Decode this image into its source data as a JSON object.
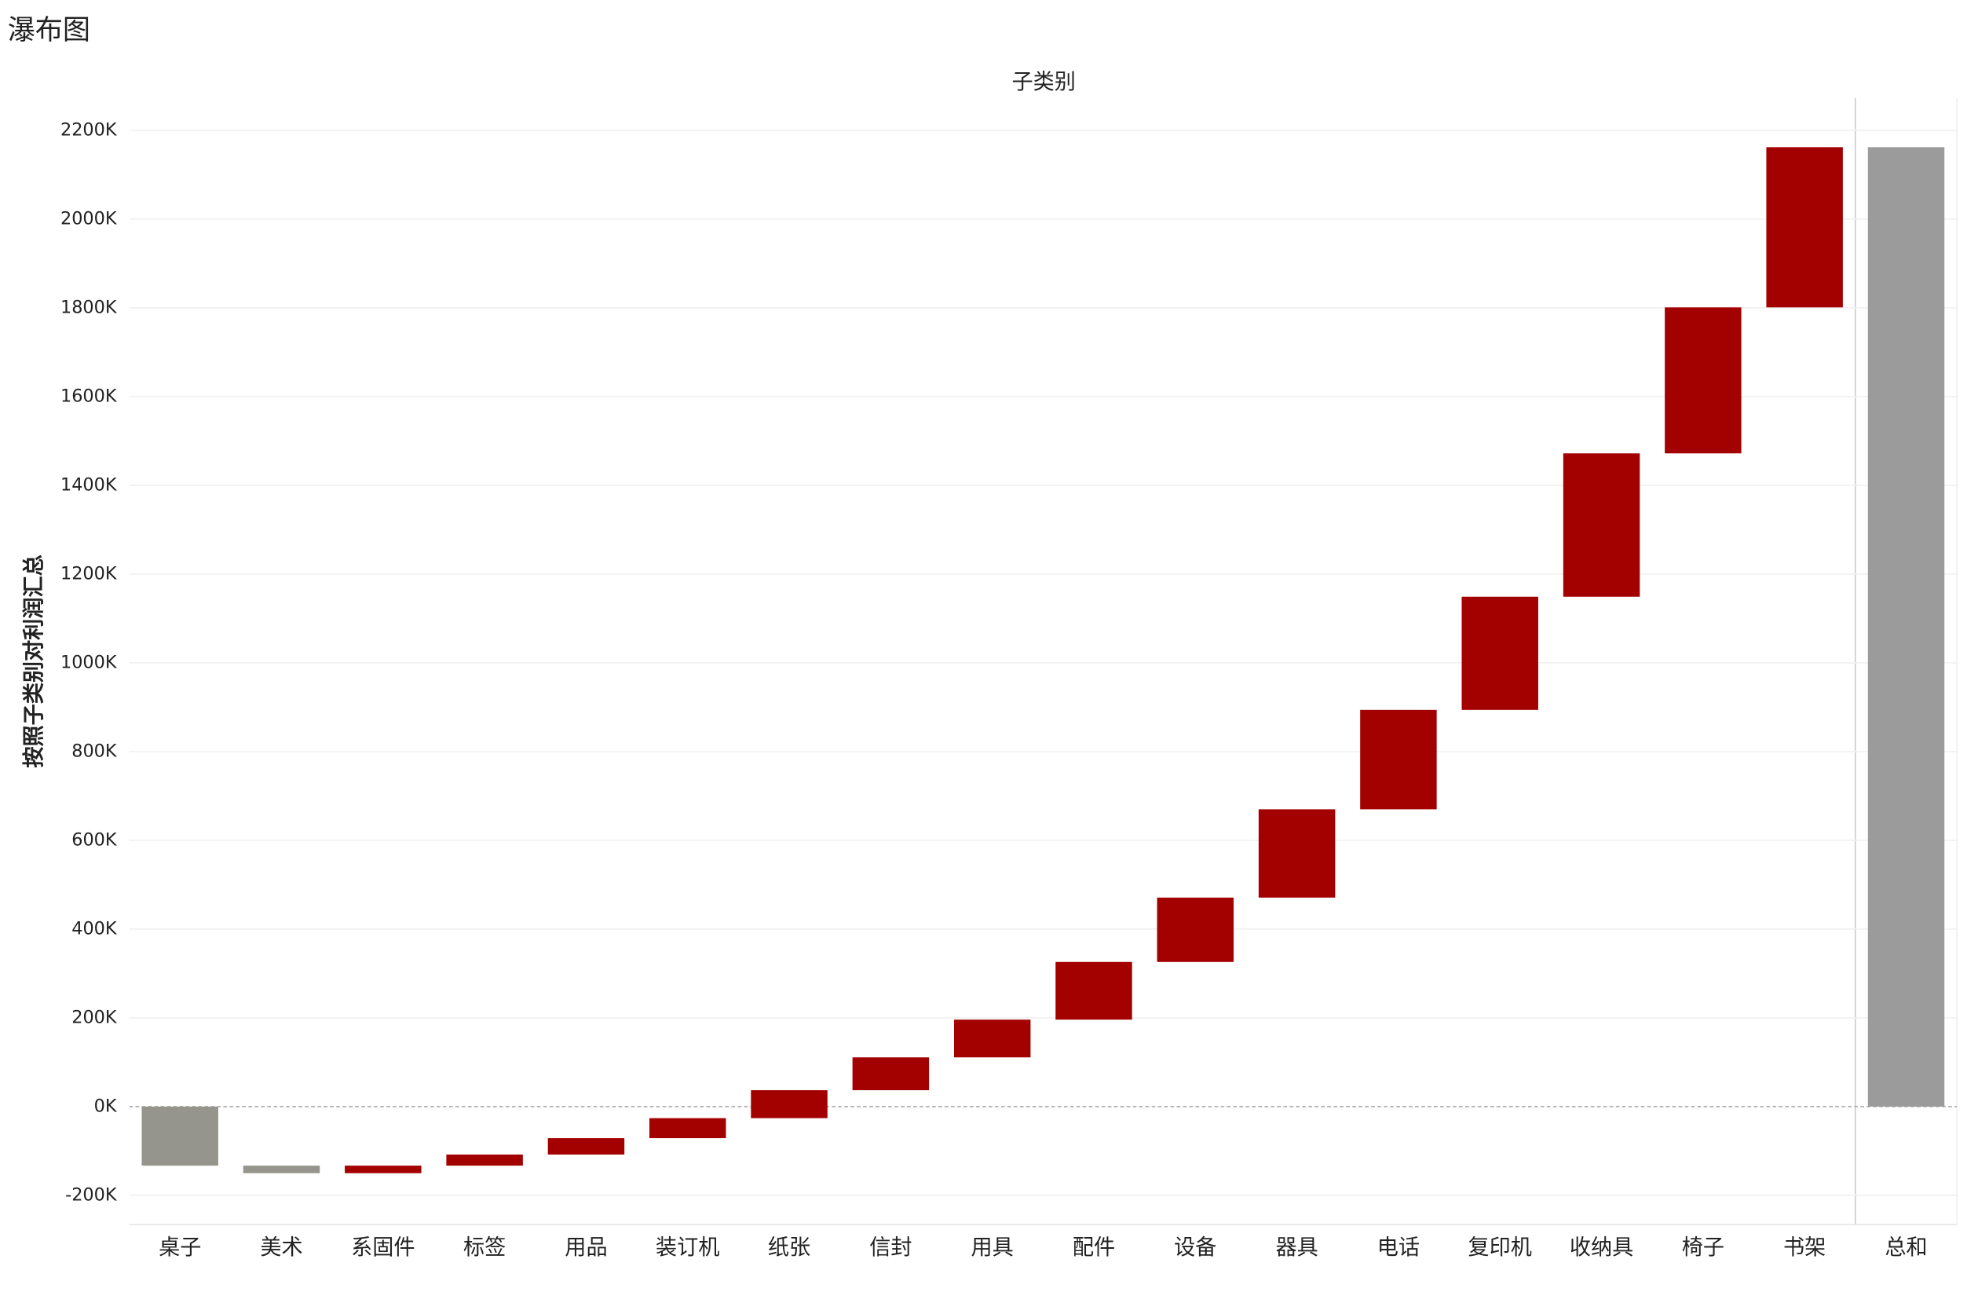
{
  "chart_data": {
    "type": "waterfall",
    "title": "瀑布图",
    "x_label": "子类别",
    "y_label": "按照子类别对利润汇总",
    "categories": [
      "桌子",
      "美术",
      "系固件",
      "标签",
      "用品",
      "装订机",
      "纸张",
      "信封",
      "用具",
      "配件",
      "设备",
      "器具",
      "电话",
      "复印机",
      "收纳具",
      "椅子",
      "书架"
    ],
    "values": [
      -133000,
      -17000,
      17000,
      25000,
      37000,
      45000,
      63000,
      74000,
      85000,
      130000,
      145000,
      199000,
      224000,
      255000,
      323000,
      329000,
      361000
    ],
    "total": {
      "label": "总和",
      "value": 2162000
    },
    "positive_color": "#a30000",
    "negative_color": "#95958d",
    "total_color": "#9b9b9b",
    "ylim": [
      -266000,
      2273000
    ],
    "yticks": [
      {
        "value": -200000,
        "label": "-200K"
      },
      {
        "value": 0,
        "label": "0K"
      },
      {
        "value": 200000,
        "label": "200K"
      },
      {
        "value": 400000,
        "label": "400K"
      },
      {
        "value": 600000,
        "label": "600K"
      },
      {
        "value": 800000,
        "label": "800K"
      },
      {
        "value": 1000000,
        "label": "1000K"
      },
      {
        "value": 1200000,
        "label": "1200K"
      },
      {
        "value": 1400000,
        "label": "1400K"
      },
      {
        "value": 1600000,
        "label": "1600K"
      },
      {
        "value": 1800000,
        "label": "1800K"
      },
      {
        "value": 2000000,
        "label": "2000K"
      },
      {
        "value": 2200000,
        "label": "2200K"
      }
    ],
    "grid": true
  }
}
